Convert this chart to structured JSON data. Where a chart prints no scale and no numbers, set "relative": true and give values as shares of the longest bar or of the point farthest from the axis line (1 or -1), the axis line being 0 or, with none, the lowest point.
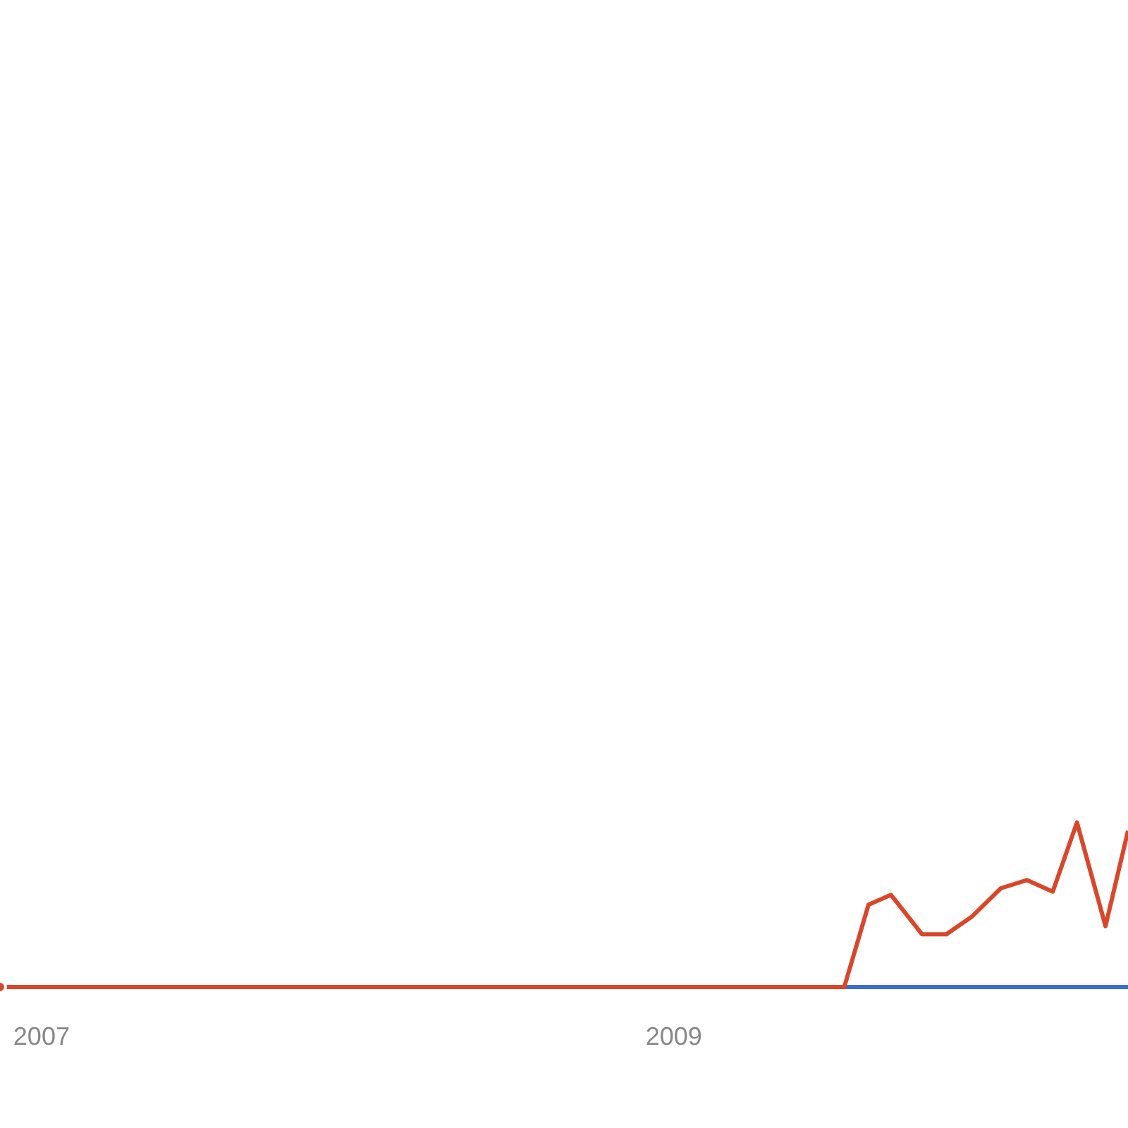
{
  "chart_data": {
    "type": "line",
    "relative": true,
    "marker": "none",
    "line_style": "solid",
    "xlim": [
      "2006-11-14",
      "2010-06-10"
    ],
    "xticks": [
      "2007",
      "2009"
    ],
    "series": [
      {
        "color": "#3d6fcc",
        "x": [
          "2009-07-17",
          "2010-06-10"
        ],
        "values": [
          0,
          0
        ]
      },
      {
        "color": "#d9472b",
        "x": [
          "2006-11-14",
          "2009-07-17",
          "2009-08-14",
          "2009-09-09",
          "2009-10-15",
          "2009-11-12",
          "2009-12-12",
          "2010-01-14",
          "2010-02-13",
          "2010-03-15",
          "2010-04-12",
          "2010-05-15",
          "2010-06-10"
        ],
        "values": [
          0,
          0,
          0.5,
          0.56,
          0.32,
          0.32,
          0.43,
          0.6,
          0.65,
          0.58,
          1,
          0.37,
          0.95
        ]
      }
    ]
  }
}
